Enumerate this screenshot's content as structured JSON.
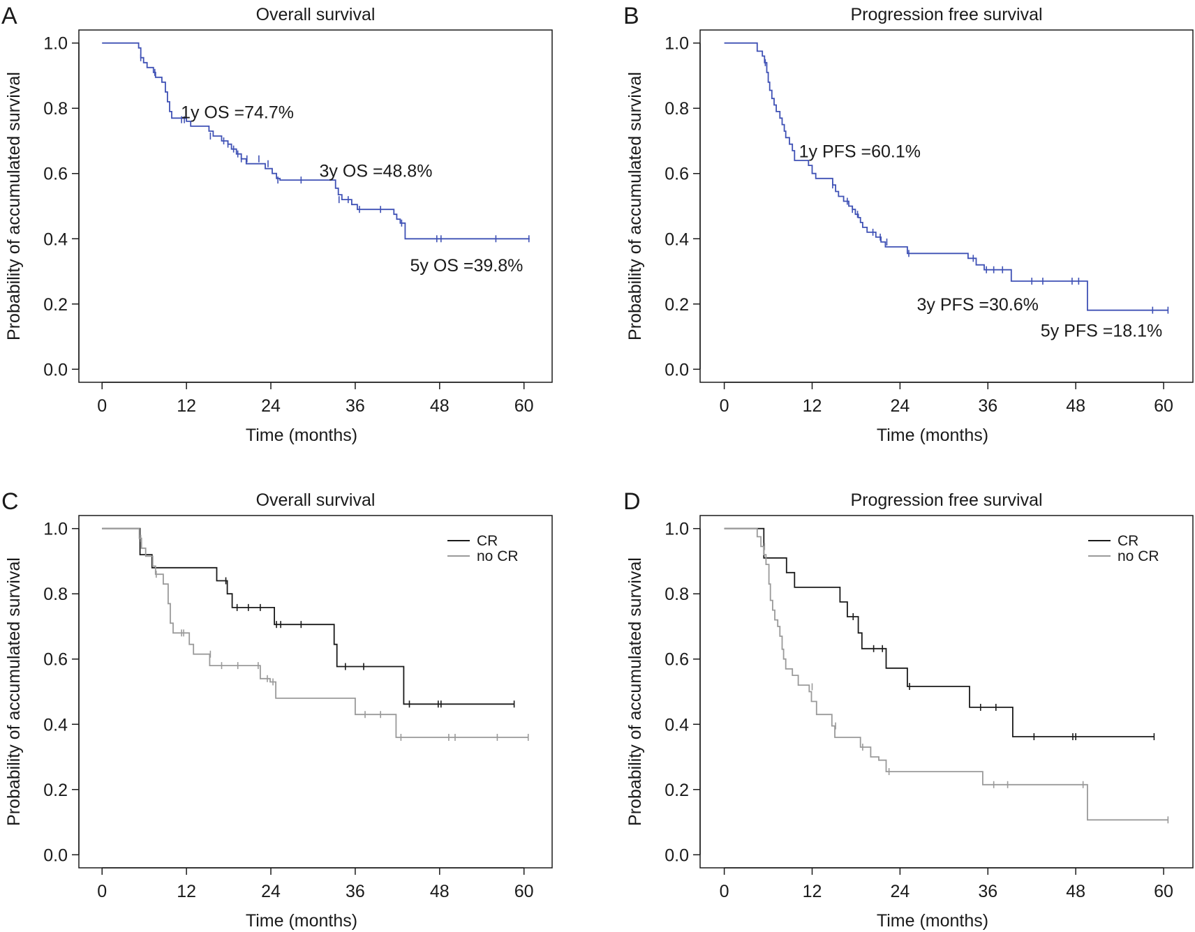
{
  "chart_data": [
    {
      "panel": "A",
      "type": "line",
      "title": "Overall survival",
      "xlabel": "Time (months)",
      "ylabel": "Probability of accumulated survival",
      "xticks": [
        0,
        12,
        24,
        36,
        48,
        60
      ],
      "yticks": [
        0.0,
        0.2,
        0.4,
        0.6,
        0.8,
        1.0
      ],
      "xlim": [
        -3.3,
        64
      ],
      "ylim": [
        -0.04,
        1.04
      ],
      "legend": "none",
      "annotations": [
        {
          "text": "1y OS =74.7%",
          "x": 11.2,
          "y": 0.77
        },
        {
          "text": "3y OS =48.8%",
          "x": 30.9,
          "y": 0.59
        },
        {
          "text": "5y OS =39.8%",
          "x": 43.8,
          "y": 0.3
        }
      ],
      "series": [
        {
          "color": "#3f51b5",
          "steps": [
            [
              0,
              1.0
            ],
            [
              5.2,
              0.985
            ],
            [
              5.5,
              0.955
            ],
            [
              5.9,
              0.94
            ],
            [
              6.4,
              0.925
            ],
            [
              7.3,
              0.91
            ],
            [
              7.6,
              0.895
            ],
            [
              8.5,
              0.88
            ],
            [
              9.0,
              0.85
            ],
            [
              9.3,
              0.82
            ],
            [
              9.6,
              0.79
            ],
            [
              9.9,
              0.77
            ],
            [
              12.0,
              0.76
            ],
            [
              12.6,
              0.745
            ],
            [
              15.2,
              0.73
            ],
            [
              15.8,
              0.715
            ],
            [
              17.0,
              0.7
            ],
            [
              17.9,
              0.69
            ],
            [
              18.4,
              0.675
            ],
            [
              19.1,
              0.66
            ],
            [
              19.8,
              0.645
            ],
            [
              20.5,
              0.63
            ],
            [
              23.2,
              0.615
            ],
            [
              24.2,
              0.6
            ],
            [
              24.8,
              0.585
            ],
            [
              25.3,
              0.58
            ],
            [
              33.2,
              0.555
            ],
            [
              33.6,
              0.535
            ],
            [
              34.1,
              0.52
            ],
            [
              35.5,
              0.505
            ],
            [
              36.3,
              0.49
            ],
            [
              41.5,
              0.475
            ],
            [
              41.9,
              0.46
            ],
            [
              42.4,
              0.448
            ],
            [
              43.1,
              0.4
            ]
          ],
          "end_x": 60.8,
          "censor": [
            [
              5.5,
              0.955
            ],
            [
              7.5,
              0.91
            ],
            [
              11.3,
              0.765
            ],
            [
              11.7,
              0.765
            ],
            [
              15.4,
              0.715
            ],
            [
              17.3,
              0.7
            ],
            [
              17.9,
              0.69
            ],
            [
              18.7,
              0.675
            ],
            [
              19.3,
              0.66
            ],
            [
              19.8,
              0.645
            ],
            [
              20.6,
              0.645
            ],
            [
              22.3,
              0.645
            ],
            [
              23.6,
              0.63
            ],
            [
              25.0,
              0.58
            ],
            [
              28.3,
              0.58
            ],
            [
              33.7,
              0.52
            ],
            [
              35.0,
              0.52
            ],
            [
              36.6,
              0.49
            ],
            [
              39.6,
              0.49
            ],
            [
              42.6,
              0.448
            ],
            [
              47.6,
              0.4
            ],
            [
              48.2,
              0.4
            ],
            [
              56.0,
              0.4
            ],
            [
              60.7,
              0.4
            ]
          ]
        }
      ]
    },
    {
      "panel": "B",
      "type": "line",
      "title": "Progression free survival",
      "xlabel": "Time (months)",
      "ylabel": "Probability of accumulated survival",
      "xticks": [
        0,
        12,
        24,
        36,
        48,
        60
      ],
      "yticks": [
        0.0,
        0.2,
        0.4,
        0.6,
        0.8,
        1.0
      ],
      "xlim": [
        -3.3,
        64
      ],
      "ylim": [
        -0.04,
        1.04
      ],
      "legend": "none",
      "annotations": [
        {
          "text": "1y PFS =60.1%",
          "x": 10.2,
          "y": 0.65
        },
        {
          "text": "3y PFS =30.6%",
          "x": 26.3,
          "y": 0.18
        },
        {
          "text": "5y PFS =18.1%",
          "x": 43.2,
          "y": 0.1
        }
      ],
      "series": [
        {
          "color": "#3f51b5",
          "steps": [
            [
              0,
              1.0
            ],
            [
              4.5,
              0.975
            ],
            [
              5.2,
              0.96
            ],
            [
              5.5,
              0.94
            ],
            [
              5.8,
              0.91
            ],
            [
              6.0,
              0.88
            ],
            [
              6.2,
              0.855
            ],
            [
              6.5,
              0.83
            ],
            [
              6.8,
              0.81
            ],
            [
              7.1,
              0.79
            ],
            [
              7.6,
              0.77
            ],
            [
              7.9,
              0.75
            ],
            [
              8.2,
              0.73
            ],
            [
              8.4,
              0.71
            ],
            [
              8.9,
              0.69
            ],
            [
              9.3,
              0.67
            ],
            [
              9.6,
              0.64
            ],
            [
              11.5,
              0.625
            ],
            [
              12.0,
              0.6
            ],
            [
              12.5,
              0.585
            ],
            [
              14.8,
              0.565
            ],
            [
              15.2,
              0.545
            ],
            [
              15.6,
              0.53
            ],
            [
              16.3,
              0.515
            ],
            [
              17.0,
              0.5
            ],
            [
              17.5,
              0.49
            ],
            [
              17.9,
              0.475
            ],
            [
              18.3,
              0.465
            ],
            [
              18.6,
              0.45
            ],
            [
              18.9,
              0.435
            ],
            [
              19.5,
              0.42
            ],
            [
              20.7,
              0.405
            ],
            [
              21.4,
              0.39
            ],
            [
              22.0,
              0.375
            ],
            [
              25.0,
              0.355
            ],
            [
              33.3,
              0.34
            ],
            [
              34.4,
              0.32
            ],
            [
              35.5,
              0.305
            ],
            [
              39.2,
              0.27
            ],
            [
              49.6,
              0.181
            ]
          ],
          "end_x": 60.6,
          "censor": [
            [
              5.6,
              0.94
            ],
            [
              14.8,
              0.565
            ],
            [
              16.8,
              0.515
            ],
            [
              17.5,
              0.49
            ],
            [
              18.2,
              0.475
            ],
            [
              20.3,
              0.42
            ],
            [
              21.3,
              0.405
            ],
            [
              22.2,
              0.39
            ],
            [
              25.2,
              0.355
            ],
            [
              34.0,
              0.34
            ],
            [
              35.8,
              0.305
            ],
            [
              36.8,
              0.305
            ],
            [
              38.0,
              0.305
            ],
            [
              42.0,
              0.27
            ],
            [
              43.5,
              0.27
            ],
            [
              47.5,
              0.27
            ],
            [
              48.4,
              0.27
            ],
            [
              58.5,
              0.181
            ],
            [
              60.6,
              0.181
            ]
          ]
        }
      ]
    },
    {
      "panel": "C",
      "type": "line",
      "title": "Overall survival",
      "xlabel": "Time (months)",
      "ylabel": "Probability of accumulated survival",
      "xticks": [
        0,
        12,
        24,
        36,
        48,
        60
      ],
      "yticks": [
        0.0,
        0.2,
        0.4,
        0.6,
        0.8,
        1.0
      ],
      "xlim": [
        -3.3,
        64
      ],
      "ylim": [
        -0.04,
        1.04
      ],
      "legend": "top-right",
      "annotations": [],
      "series": [
        {
          "name": "CR",
          "color": "#1a1a1a",
          "steps": [
            [
              0,
              1.0
            ],
            [
              5.4,
              0.92
            ],
            [
              7.1,
              0.88
            ],
            [
              16.3,
              0.84
            ],
            [
              17.8,
              0.8
            ],
            [
              18.5,
              0.758
            ],
            [
              24.5,
              0.706
            ],
            [
              33.0,
              0.645
            ],
            [
              33.4,
              0.577
            ],
            [
              42.9,
              0.462
            ]
          ],
          "end_x": 58.6,
          "censor": [
            [
              17.6,
              0.84
            ],
            [
              19.2,
              0.758
            ],
            [
              20.8,
              0.758
            ],
            [
              22.5,
              0.758
            ],
            [
              24.8,
              0.706
            ],
            [
              25.4,
              0.706
            ],
            [
              28.3,
              0.706
            ],
            [
              34.6,
              0.577
            ],
            [
              37.2,
              0.577
            ],
            [
              43.7,
              0.462
            ],
            [
              47.8,
              0.462
            ],
            [
              48.2,
              0.462
            ],
            [
              58.6,
              0.462
            ]
          ]
        },
        {
          "name": "no CR",
          "color": "#9a9a9a",
          "steps": [
            [
              0,
              1.0
            ],
            [
              5.3,
              0.97
            ],
            [
              5.6,
              0.94
            ],
            [
              6.2,
              0.915
            ],
            [
              7.2,
              0.885
            ],
            [
              7.6,
              0.86
            ],
            [
              8.7,
              0.83
            ],
            [
              9.4,
              0.77
            ],
            [
              9.7,
              0.71
            ],
            [
              10.1,
              0.68
            ],
            [
              12.4,
              0.645
            ],
            [
              13.0,
              0.615
            ],
            [
              15.3,
              0.58
            ],
            [
              22.5,
              0.54
            ],
            [
              23.9,
              0.53
            ],
            [
              24.7,
              0.48
            ],
            [
              36.0,
              0.43
            ],
            [
              41.8,
              0.36
            ]
          ],
          "end_x": 60.6,
          "censor": [
            [
              5.5,
              0.97
            ],
            [
              7.7,
              0.86
            ],
            [
              11.3,
              0.68
            ],
            [
              11.6,
              0.68
            ],
            [
              15.4,
              0.615
            ],
            [
              17.0,
              0.58
            ],
            [
              19.3,
              0.58
            ],
            [
              22.2,
              0.58
            ],
            [
              23.5,
              0.54
            ],
            [
              24.3,
              0.53
            ],
            [
              37.4,
              0.43
            ],
            [
              39.6,
              0.43
            ],
            [
              42.5,
              0.36
            ],
            [
              49.3,
              0.36
            ],
            [
              50.2,
              0.36
            ],
            [
              56.2,
              0.36
            ],
            [
              60.6,
              0.36
            ]
          ]
        }
      ]
    },
    {
      "panel": "D",
      "type": "line",
      "title": "Progression free survival",
      "xlabel": "Time (months)",
      "ylabel": "Probability of accumulated survival",
      "xticks": [
        0,
        12,
        24,
        36,
        48,
        60
      ],
      "yticks": [
        0.0,
        0.2,
        0.4,
        0.6,
        0.8,
        1.0
      ],
      "xlim": [
        -3.3,
        64
      ],
      "ylim": [
        -0.04,
        1.04
      ],
      "legend": "top-right",
      "annotations": [],
      "series": [
        {
          "name": "CR",
          "color": "#1a1a1a",
          "steps": [
            [
              0,
              1.0
            ],
            [
              5.4,
              0.91
            ],
            [
              8.5,
              0.865
            ],
            [
              9.6,
              0.82
            ],
            [
              15.8,
              0.775
            ],
            [
              16.8,
              0.73
            ],
            [
              18.3,
              0.68
            ],
            [
              18.8,
              0.632
            ],
            [
              22.1,
              0.572
            ],
            [
              25.0,
              0.516
            ],
            [
              33.5,
              0.452
            ],
            [
              39.4,
              0.362
            ]
          ],
          "end_x": 58.7,
          "censor": [
            [
              17.6,
              0.73
            ],
            [
              20.4,
              0.632
            ],
            [
              21.6,
              0.632
            ],
            [
              25.3,
              0.516
            ],
            [
              35.0,
              0.452
            ],
            [
              37.1,
              0.452
            ],
            [
              42.3,
              0.362
            ],
            [
              47.6,
              0.362
            ],
            [
              48.0,
              0.362
            ],
            [
              58.7,
              0.362
            ]
          ]
        },
        {
          "name": "no CR",
          "color": "#9a9a9a",
          "steps": [
            [
              0,
              1.0
            ],
            [
              4.5,
              0.975
            ],
            [
              5.0,
              0.945
            ],
            [
              5.4,
              0.92
            ],
            [
              5.7,
              0.89
            ],
            [
              6.1,
              0.83
            ],
            [
              6.3,
              0.78
            ],
            [
              6.6,
              0.75
            ],
            [
              6.9,
              0.72
            ],
            [
              7.3,
              0.7
            ],
            [
              7.6,
              0.67
            ],
            [
              7.9,
              0.63
            ],
            [
              8.1,
              0.6
            ],
            [
              8.4,
              0.57
            ],
            [
              9.3,
              0.55
            ],
            [
              10.1,
              0.52
            ],
            [
              11.6,
              0.5
            ],
            [
              11.9,
              0.47
            ],
            [
              12.6,
              0.43
            ],
            [
              14.7,
              0.395
            ],
            [
              15.1,
              0.36
            ],
            [
              18.6,
              0.33
            ],
            [
              20.0,
              0.3
            ],
            [
              21.1,
              0.29
            ],
            [
              22.1,
              0.255
            ],
            [
              35.3,
              0.215
            ],
            [
              49.6,
              0.107
            ]
          ],
          "end_x": 60.6,
          "censor": [
            [
              5.5,
              0.945
            ],
            [
              12.0,
              0.515
            ],
            [
              15.2,
              0.395
            ],
            [
              18.9,
              0.33
            ],
            [
              22.5,
              0.255
            ],
            [
              36.8,
              0.215
            ],
            [
              38.7,
              0.215
            ],
            [
              49.0,
              0.215
            ],
            [
              60.6,
              0.107
            ]
          ]
        }
      ]
    }
  ]
}
